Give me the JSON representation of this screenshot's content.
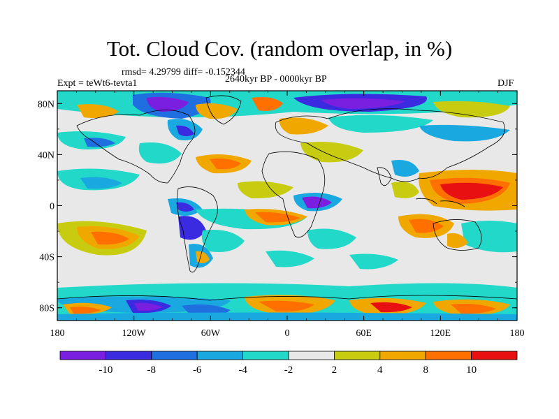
{
  "title": "Tot. Cloud Cov. (random overlap, in %)",
  "stats_line": "rmsd= 4.29799 diff= -0.152344",
  "left_label": "Expt = teWt6-tevta1",
  "center_label": "2640kyr BP - 0000kyr BP",
  "right_label": "DJF",
  "lon_ticks": [
    "180",
    "120W",
    "60W",
    "0",
    "60E",
    "120E",
    "180"
  ],
  "lat_ticks": [
    "80N",
    "40N",
    "0",
    "40S",
    "80S"
  ],
  "colorbar": {
    "labels": [
      "-10",
      "-8",
      "-6",
      "-4",
      "-2",
      "2",
      "4",
      "8",
      "10"
    ],
    "colors": [
      "#7a1fe0",
      "#3a2ae0",
      "#1f6fe0",
      "#1aa8e0",
      "#22d8c8",
      "#e8e8e8",
      "#c8cc10",
      "#f0a800",
      "#ff7000",
      "#e81010"
    ]
  }
}
